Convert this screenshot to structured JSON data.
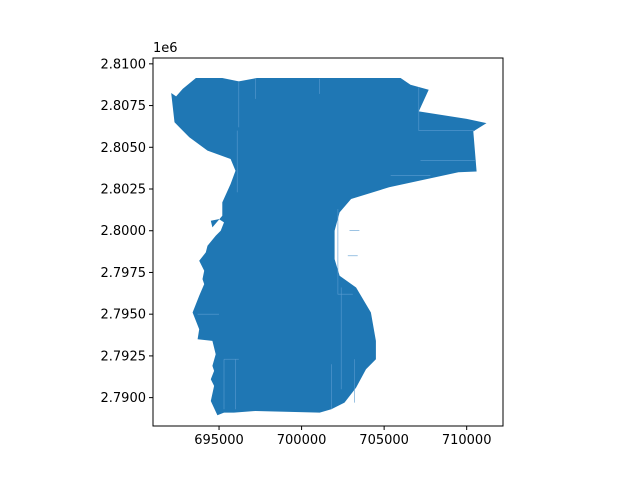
{
  "chart_data": {
    "type": "map",
    "title": "",
    "xlabel": "",
    "ylabel": "",
    "y_offset_label": "1e6",
    "xlim": [
      691000,
      712200
    ],
    "ylim": [
      2788300,
      2810350
    ],
    "x_ticks": [
      695000,
      700000,
      705000,
      710000
    ],
    "x_tick_labels": [
      "695000",
      "700000",
      "705000",
      "710000"
    ],
    "y_ticks": [
      2790000,
      2792500,
      2795000,
      2797500,
      2800000,
      2802500,
      2805000,
      2807500,
      2810000
    ],
    "y_tick_labels": [
      "2.7900",
      "2.7925",
      "2.7950",
      "2.7975",
      "2.8000",
      "2.8025",
      "2.8050",
      "2.8075",
      "2.8100"
    ],
    "fill_color": "#1f77b4",
    "boundary_line_color": "#5a9bd0",
    "outline": [
      [
        692100,
        2808250
      ],
      [
        692400,
        2808050
      ],
      [
        692800,
        2808500
      ],
      [
        693600,
        2809150
      ],
      [
        695200,
        2809150
      ],
      [
        696200,
        2808950
      ],
      [
        697300,
        2809150
      ],
      [
        703200,
        2809150
      ],
      [
        706000,
        2809150
      ],
      [
        706600,
        2808750
      ],
      [
        707700,
        2808450
      ],
      [
        707100,
        2807150
      ],
      [
        710000,
        2806700
      ],
      [
        711200,
        2806450
      ],
      [
        710400,
        2805950
      ],
      [
        710600,
        2803550
      ],
      [
        709500,
        2803500
      ],
      [
        705300,
        2802600
      ],
      [
        703000,
        2801900
      ],
      [
        702300,
        2801100
      ],
      [
        702000,
        2800000
      ],
      [
        702000,
        2798300
      ],
      [
        702300,
        2797300
      ],
      [
        703300,
        2796600
      ],
      [
        704200,
        2795100
      ],
      [
        704500,
        2793400
      ],
      [
        704500,
        2792300
      ],
      [
        703900,
        2791700
      ],
      [
        703300,
        2790600
      ],
      [
        702600,
        2789700
      ],
      [
        701800,
        2789300
      ],
      [
        701100,
        2789100
      ],
      [
        697200,
        2789200
      ],
      [
        695900,
        2789100
      ],
      [
        695300,
        2789100
      ],
      [
        694900,
        2788950
      ],
      [
        694500,
        2789800
      ],
      [
        694700,
        2790700
      ],
      [
        694500,
        2791100
      ],
      [
        694700,
        2791600
      ],
      [
        694600,
        2791900
      ],
      [
        694800,
        2792600
      ],
      [
        694600,
        2793400
      ],
      [
        693700,
        2793500
      ],
      [
        693800,
        2794100
      ],
      [
        693400,
        2795100
      ],
      [
        693800,
        2796100
      ],
      [
        694100,
        2796800
      ],
      [
        694000,
        2797100
      ],
      [
        694100,
        2797600
      ],
      [
        693800,
        2798200
      ],
      [
        694200,
        2798700
      ],
      [
        694300,
        2799100
      ],
      [
        694800,
        2799700
      ],
      [
        695100,
        2800000
      ],
      [
        695300,
        2800500
      ],
      [
        695000,
        2800700
      ],
      [
        694500,
        2800600
      ],
      [
        694600,
        2800200
      ],
      [
        695200,
        2800900
      ],
      [
        695200,
        2801700
      ],
      [
        695700,
        2802800
      ],
      [
        696000,
        2803600
      ],
      [
        695700,
        2804300
      ],
      [
        694300,
        2804800
      ],
      [
        693200,
        2805600
      ],
      [
        692300,
        2806500
      ],
      [
        692100,
        2808250
      ]
    ],
    "internal_boundaries": [
      [
        [
          696100,
          2806000
        ],
        [
          696100,
          2802300
        ]
      ],
      [
        [
          702200,
          2801300
        ],
        [
          702200,
          2796200
        ],
        [
          703100,
          2796200
        ]
      ],
      [
        [
          696200,
          2808900
        ],
        [
          696200,
          2806200
        ]
      ],
      [
        [
          697200,
          2809100
        ],
        [
          697200,
          2807900
        ]
      ],
      [
        [
          701100,
          2809100
        ],
        [
          701100,
          2808200
        ]
      ],
      [
        [
          707100,
          2808600
        ],
        [
          707100,
          2806000
        ],
        [
          710500,
          2806000
        ]
      ],
      [
        [
          707200,
          2804200
        ],
        [
          710500,
          2804200
        ]
      ],
      [
        [
          705400,
          2803300
        ],
        [
          707800,
          2803300
        ]
      ],
      [
        [
          702900,
          2800000
        ],
        [
          703500,
          2800000
        ]
      ],
      [
        [
          702800,
          2798500
        ],
        [
          703400,
          2798500
        ]
      ],
      [
        [
          695300,
          2792300
        ],
        [
          695300,
          2789300
        ]
      ],
      [
        [
          695300,
          2792300
        ],
        [
          696200,
          2792300
        ]
      ],
      [
        [
          696000,
          2792300
        ],
        [
          696000,
          2789300
        ]
      ],
      [
        [
          703200,
          2792300
        ],
        [
          703200,
          2789700
        ]
      ],
      [
        [
          701800,
          2792000
        ],
        [
          701800,
          2789300
        ]
      ],
      [
        [
          693700,
          2795000
        ],
        [
          695000,
          2795000
        ]
      ],
      [
        [
          702400,
          2796600
        ],
        [
          702400,
          2790500
        ]
      ]
    ]
  }
}
